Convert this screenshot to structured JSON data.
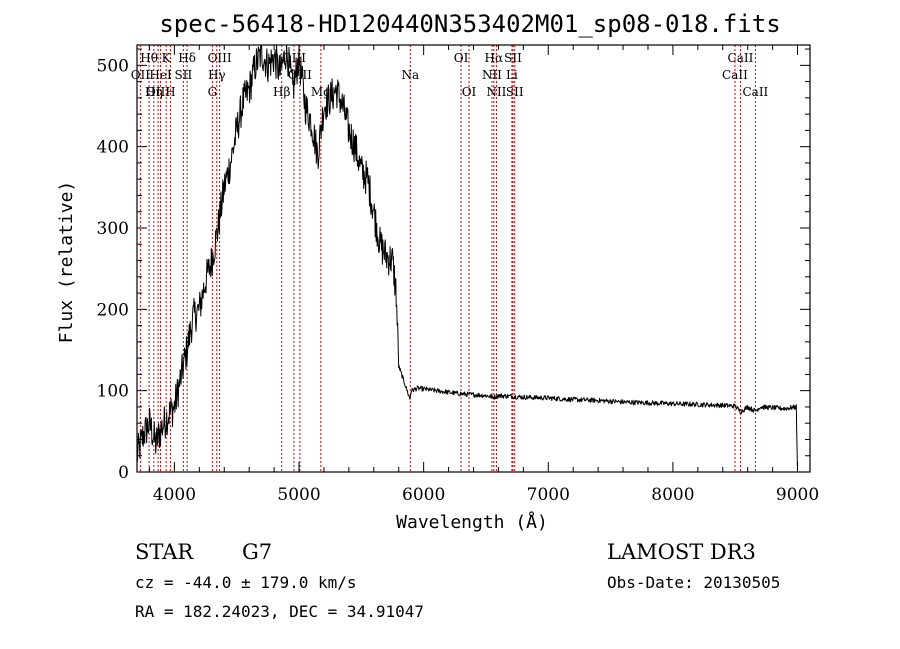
{
  "chart_data": {
    "type": "line",
    "title": "spec-56418-HD120440N353402M01_sp08-018.fits",
    "xlabel": "Wavelength (Å)",
    "ylabel": "Flux (relative)",
    "xlim": [
      3700,
      9100
    ],
    "ylim": [
      0,
      525
    ],
    "x_ticks": [
      4000,
      5000,
      6000,
      7000,
      8000,
      9000
    ],
    "x_tick_labels": [
      "4000",
      "5000",
      "6000",
      "7000",
      "8000",
      "9000"
    ],
    "y_ticks": [
      0,
      100,
      200,
      300,
      400,
      500
    ],
    "y_tick_labels": [
      "0",
      "100",
      "200",
      "300",
      "400",
      "500"
    ],
    "grid": false,
    "series": [
      {
        "name": "spectrum",
        "color": "#000000",
        "x": [
          3700,
          3750,
          3800,
          3850,
          3900,
          3950,
          4000,
          4050,
          4100,
          4150,
          4200,
          4250,
          4300,
          4350,
          4400,
          4450,
          4500,
          4550,
          4600,
          4650,
          4700,
          4750,
          4800,
          4850,
          4900,
          4950,
          5000,
          5050,
          5100,
          5150,
          5200,
          5250,
          5300,
          5350,
          5400,
          5450,
          5500,
          5550,
          5600,
          5650,
          5700,
          5750,
          5780,
          5800,
          5850,
          5890,
          5900,
          5950,
          6000,
          6100,
          6200,
          6300,
          6400,
          6500,
          6563,
          6600,
          6700,
          6800,
          7000,
          7200,
          7400,
          7600,
          7800,
          8000,
          8200,
          8400,
          8500,
          8542,
          8600,
          8662,
          8700,
          8800,
          8900,
          8990,
          9000
        ],
        "y": [
          20,
          45,
          60,
          35,
          55,
          70,
          80,
          115,
          150,
          190,
          200,
          235,
          260,
          300,
          350,
          380,
          420,
          455,
          470,
          500,
          515,
          500,
          510,
          490,
          520,
          470,
          510,
          450,
          430,
          390,
          450,
          460,
          470,
          450,
          420,
          400,
          370,
          360,
          320,
          280,
          265,
          260,
          220,
          130,
          108,
          90,
          100,
          103,
          102,
          100,
          98,
          96,
          95,
          94,
          92,
          94,
          93,
          92,
          91,
          89,
          88,
          86,
          85,
          84,
          83,
          82,
          81,
          74,
          80,
          75,
          80,
          79,
          78,
          80,
          0
        ]
      }
    ],
    "spectral_lines": [
      {
        "label": "Hθ",
        "x": 3797,
        "row": 1
      },
      {
        "label": "OII",
        "x": 3727,
        "row": 2
      },
      {
        "label": "OIII",
        "x": 3869,
        "row": 3
      },
      {
        "label": "K",
        "x": 3934,
        "row": 1
      },
      {
        "label": "HeI",
        "x": 3889,
        "row": 2
      },
      {
        "label": "Hη",
        "x": 3835,
        "row": 3
      },
      {
        "label": "Hδ",
        "x": 4102,
        "row": 1
      },
      {
        "label": "SII",
        "x": 4072,
        "row": 2
      },
      {
        "label": "H",
        "x": 3968,
        "row": 3
      },
      {
        "label": "OIII",
        "x": 4363,
        "row": 1
      },
      {
        "label": "Hγ",
        "x": 4340,
        "row": 2
      },
      {
        "label": "G",
        "x": 4305,
        "row": 3
      },
      {
        "label": "Hβ",
        "x": 4861,
        "row": 3
      },
      {
        "label": "OIII",
        "x": 4959,
        "row": 1
      },
      {
        "label": "OIII",
        "x": 5007,
        "row": 2
      },
      {
        "label": "Mg",
        "x": 5175,
        "row": 3
      },
      {
        "label": "Na",
        "x": 5893,
        "row": 2
      },
      {
        "label": "OI",
        "x": 6300,
        "row": 1
      },
      {
        "label": "OI",
        "x": 6364,
        "row": 3
      },
      {
        "label": "Hα",
        "x": 6563,
        "row": 1
      },
      {
        "label": "NII",
        "x": 6548,
        "row": 2
      },
      {
        "label": "NII",
        "x": 6584,
        "row": 3
      },
      {
        "label": "SII",
        "x": 6717,
        "row": 1
      },
      {
        "label": "Li",
        "x": 6708,
        "row": 2
      },
      {
        "label": "SII",
        "x": 6731,
        "row": 3
      },
      {
        "label": "CaII",
        "x": 8542,
        "row": 1
      },
      {
        "label": "CaII",
        "x": 8498,
        "row": 2
      },
      {
        "label": "CaII",
        "x": 8662,
        "row": 3
      }
    ]
  },
  "info": {
    "object_type": "STAR",
    "subclass": "G7",
    "survey": "LAMOST DR3",
    "cz": "cz = -44.0 ± 179.0 km/s",
    "obs_date": "Obs-Date: 20130505",
    "radec": "RA = 182.24023, DEC =  34.91047"
  },
  "colors": {
    "line_marker": "#cc0000",
    "spectrum": "#000000",
    "axes": "#000000",
    "background": "#ffffff"
  }
}
